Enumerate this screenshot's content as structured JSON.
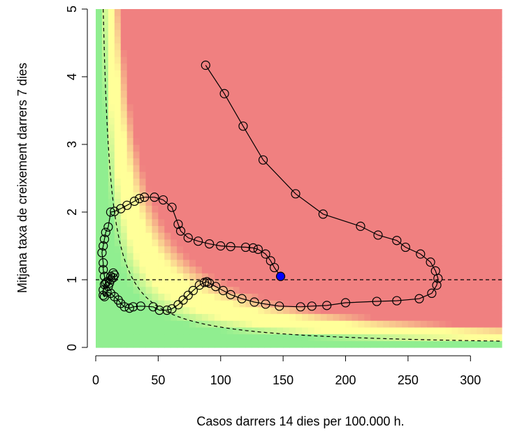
{
  "chart_data": {
    "type": "line",
    "title": "",
    "xlabel": "Casos darrers 14 dies per 100.000 h.",
    "ylabel": "Mitjana taxa de creixement darrers 7 dies",
    "xlim": [
      0,
      325
    ],
    "ylim": [
      0,
      5
    ],
    "x_ticks": [
      0,
      50,
      100,
      150,
      200,
      250,
      300
    ],
    "y_ticks": [
      0,
      1,
      2,
      3,
      4,
      5
    ],
    "background": {
      "kind": "risk-heatmap",
      "colors": {
        "low": "#90ee90",
        "mid": "#ffff99",
        "high": "#f08080"
      }
    },
    "reference_lines": [
      {
        "kind": "horizontal",
        "y": 1,
        "style": "dashed"
      },
      {
        "kind": "hyperbola",
        "formula": "x*y = 30",
        "style": "dashed"
      }
    ],
    "series": [
      {
        "points": [
          [
            88,
            4.17
          ],
          [
            103,
            3.75
          ],
          [
            118,
            3.27
          ],
          [
            134,
            2.77
          ],
          [
            160,
            2.27
          ],
          [
            182,
            1.97
          ],
          [
            212,
            1.79
          ],
          [
            226,
            1.66
          ],
          [
            241,
            1.58
          ],
          [
            248,
            1.48
          ],
          [
            260,
            1.38
          ],
          [
            268,
            1.26
          ],
          [
            272,
            1.13
          ],
          [
            274,
            1.02
          ],
          [
            273,
            0.92
          ],
          [
            269,
            0.8
          ],
          [
            259,
            0.72
          ],
          [
            241,
            0.69
          ],
          [
            225,
            0.68
          ],
          [
            200,
            0.66
          ],
          [
            185,
            0.62
          ],
          [
            173,
            0.61
          ],
          [
            164,
            0.6
          ],
          [
            147,
            0.61
          ],
          [
            136,
            0.64
          ],
          [
            127,
            0.67
          ],
          [
            117,
            0.72
          ],
          [
            108,
            0.78
          ],
          [
            102,
            0.84
          ],
          [
            96,
            0.9
          ],
          [
            91,
            0.95
          ],
          [
            89,
            0.97
          ],
          [
            87,
            0.96
          ],
          [
            83,
            0.92
          ],
          [
            78,
            0.84
          ],
          [
            74,
            0.77
          ],
          [
            70,
            0.7
          ],
          [
            66,
            0.63
          ],
          [
            61,
            0.57
          ],
          [
            57,
            0.55
          ],
          [
            51,
            0.55
          ],
          [
            46,
            0.6
          ],
          [
            36,
            0.61
          ],
          [
            30,
            0.6
          ],
          [
            27,
            0.58
          ],
          [
            23,
            0.6
          ],
          [
            20,
            0.65
          ],
          [
            18,
            0.7
          ],
          [
            15,
            0.75
          ],
          [
            12,
            0.8
          ],
          [
            9,
            0.82
          ],
          [
            7,
            0.75
          ],
          [
            6,
            0.77
          ],
          [
            6,
            0.85
          ],
          [
            7,
            0.93
          ],
          [
            9,
            0.97
          ],
          [
            12,
            1.0
          ],
          [
            14,
            1.03
          ],
          [
            15,
            1.07
          ],
          [
            14,
            1.1
          ],
          [
            12,
            1.05
          ],
          [
            11,
            0.95
          ],
          [
            10,
            0.9
          ],
          [
            8,
            0.95
          ],
          [
            7,
            1.05
          ],
          [
            6,
            1.15
          ],
          [
            6,
            1.25
          ],
          [
            5,
            1.4
          ],
          [
            6,
            1.5
          ],
          [
            7,
            1.6
          ],
          [
            8,
            1.7
          ],
          [
            10,
            1.78
          ],
          [
            12,
            2.0
          ],
          [
            15,
            2.01
          ],
          [
            20,
            2.05
          ],
          [
            25,
            2.1
          ],
          [
            31,
            2.16
          ],
          [
            35,
            2.2
          ],
          [
            39,
            2.22
          ],
          [
            47,
            2.22
          ],
          [
            54,
            2.18
          ],
          [
            61,
            2.07
          ],
          [
            66,
            1.82
          ],
          [
            68,
            1.72
          ],
          [
            74,
            1.62
          ],
          [
            82,
            1.57
          ],
          [
            91,
            1.53
          ],
          [
            100,
            1.5
          ],
          [
            108,
            1.49
          ],
          [
            120,
            1.48
          ],
          [
            126,
            1.47
          ],
          [
            130,
            1.45
          ],
          [
            136,
            1.38
          ],
          [
            140,
            1.28
          ],
          [
            143,
            1.18
          ]
        ],
        "current_point": [
          148,
          1.05
        ]
      }
    ]
  }
}
